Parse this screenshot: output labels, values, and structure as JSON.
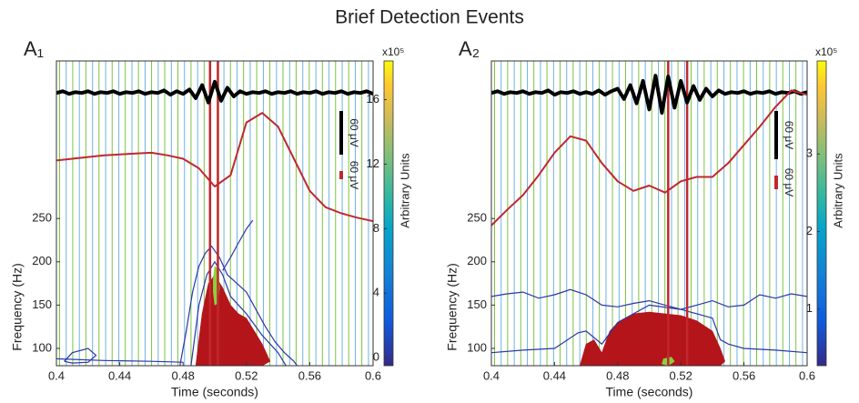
{
  "title": "Brief Detection Events",
  "chart_data": [
    {
      "type": "spectrogram",
      "panel_label": "A₁",
      "xlabel": "Time (seconds)",
      "ylabel": "Frequency (Hz)",
      "colorbar_label": "Arbitrary Units",
      "colorbar_scale": "x10⁵",
      "xlim": [
        0.4,
        0.6
      ],
      "xticks": [
        0.4,
        0.44,
        0.48,
        0.52,
        0.56,
        0.6
      ],
      "ylim": [
        80,
        432
      ],
      "yticks": [
        100,
        150,
        200,
        250
      ],
      "clim": [
        -0.5,
        18.4
      ],
      "cticks": [
        0,
        4,
        8,
        12,
        16
      ],
      "scale_bars": [
        {
          "label": "60 μV",
          "color": "#000000"
        },
        {
          "label": "60 μV",
          "color": "#c0282d"
        }
      ],
      "phase_lines": [
        {
          "color": "#7dc242",
          "x": [
            0.402,
            0.4103,
            0.4186,
            0.4269,
            0.4352,
            0.4435,
            0.4518,
            0.4601,
            0.4684,
            0.4767,
            0.485,
            0.4933,
            0.5016,
            0.5099,
            0.5182,
            0.5265,
            0.5348,
            0.5431,
            0.5514,
            0.5597,
            0.568,
            0.5763,
            0.5846,
            0.5929
          ]
        },
        {
          "color": "#6fb3e0",
          "x": [
            0.4062,
            0.4145,
            0.4228,
            0.4311,
            0.4394,
            0.4477,
            0.456,
            0.4643,
            0.4726,
            0.4809,
            0.4892,
            0.4975,
            0.5058,
            0.5141,
            0.5224,
            0.5307,
            0.539,
            0.5473,
            0.5556,
            0.5639,
            0.5722,
            0.5805,
            0.5888,
            0.5971
          ]
        }
      ],
      "event_lines": {
        "color": "#c0282d",
        "x": [
          0.497,
          0.502
        ]
      },
      "contours": [
        {
          "color": "#b3151b",
          "filled": true,
          "x": [
            0.488,
            0.492,
            0.496,
            0.5,
            0.505,
            0.51,
            0.515,
            0.52,
            0.525,
            0.53,
            0.535,
            0.53,
            0.52,
            0.5,
            0.488
          ],
          "y": [
            80,
            140,
            175,
            185,
            170,
            150,
            140,
            135,
            120,
            105,
            85,
            80,
            80,
            80,
            80
          ]
        },
        {
          "color": "#2b35a8",
          "filled": false,
          "x": [
            0.478,
            0.482,
            0.486,
            0.49,
            0.494,
            0.498,
            0.503,
            0.508,
            0.514,
            0.52,
            0.526,
            0.532,
            0.538,
            0.544,
            0.55,
            0.552
          ],
          "y": [
            80,
            120,
            165,
            195,
            210,
            218,
            205,
            185,
            175,
            165,
            145,
            125,
            108,
            95,
            85,
            80
          ]
        },
        {
          "color": "#2b35a8",
          "filled": false,
          "x": [
            0.485,
            0.49,
            0.495,
            0.5,
            0.505,
            0.51,
            0.52,
            0.53,
            0.54,
            0.545
          ],
          "y": [
            80,
            150,
            185,
            200,
            185,
            160,
            140,
            115,
            95,
            80
          ]
        },
        {
          "color": "#2b35a8",
          "filled": false,
          "x": [
            0.505,
            0.51,
            0.515,
            0.52,
            0.524
          ],
          "y": [
            190,
            205,
            222,
            238,
            248
          ]
        },
        {
          "color": "#2b35a8",
          "filled": false,
          "x": [
            0.405,
            0.41,
            0.42,
            0.425,
            0.42,
            0.41,
            0.405
          ],
          "y": [
            85,
            95,
            100,
            92,
            84,
            83,
            85
          ]
        },
        {
          "color": "#2b35a8",
          "filled": false,
          "x": [
            0.4,
            0.43,
            0.46,
            0.48
          ],
          "y": [
            88,
            86,
            85,
            84
          ]
        },
        {
          "color": "#8ccf3e",
          "filled": true,
          "x": [
            0.499,
            0.5,
            0.502,
            0.503,
            0.502,
            0.5,
            0.499
          ],
          "y": [
            165,
            150,
            152,
            170,
            192,
            195,
            180
          ]
        }
      ],
      "series": [
        {
          "color": "#000000",
          "x": [
            0.4,
            0.404,
            0.408,
            0.412,
            0.416,
            0.42,
            0.424,
            0.428,
            0.432,
            0.436,
            0.44,
            0.444,
            0.448,
            0.452,
            0.456,
            0.46,
            0.464,
            0.468,
            0.472,
            0.476,
            0.48,
            0.484,
            0.488,
            0.492,
            0.496,
            0.5,
            0.504,
            0.508,
            0.512,
            0.516,
            0.52,
            0.524,
            0.528,
            0.532,
            0.536,
            0.54,
            0.544,
            0.548,
            0.552,
            0.556,
            0.56,
            0.564,
            0.568,
            0.572,
            0.576,
            0.58,
            0.584,
            0.588,
            0.592,
            0.596,
            0.6
          ],
          "values": [
            395,
            397,
            394,
            396,
            395,
            397,
            394,
            396,
            395,
            397,
            394,
            396,
            395,
            397,
            394,
            396,
            395,
            398,
            393,
            397,
            394,
            399,
            389,
            404,
            384,
            408,
            386,
            401,
            391,
            397,
            394,
            396,
            395,
            397,
            394,
            396,
            395,
            397,
            394,
            396,
            395,
            397,
            394,
            396,
            395,
            397,
            394,
            396,
            395,
            397,
            394
          ]
        },
        {
          "color": "#c0282d",
          "x": [
            0.4,
            0.41,
            0.42,
            0.43,
            0.44,
            0.45,
            0.46,
            0.47,
            0.48,
            0.49,
            0.5,
            0.51,
            0.52,
            0.53,
            0.54,
            0.55,
            0.56,
            0.57,
            0.58,
            0.59,
            0.6
          ],
          "values": [
            317,
            319,
            321,
            323,
            324,
            325,
            326,
            323,
            319,
            308,
            287,
            300,
            361,
            372,
            356,
            319,
            282,
            263,
            256,
            251,
            247
          ]
        }
      ]
    },
    {
      "type": "spectrogram",
      "panel_label": "A₂",
      "xlabel": "Time (seconds)",
      "ylabel": "Frequency (Hz)",
      "colorbar_label": "Arbitrary Units",
      "colorbar_scale": "x10⁵",
      "xlim": [
        0.4,
        0.6
      ],
      "xticks": [
        0.4,
        0.44,
        0.48,
        0.52,
        0.56,
        0.6
      ],
      "ylim": [
        80,
        432
      ],
      "yticks": [
        100,
        150,
        200,
        250
      ],
      "clim": [
        0.27,
        4.2
      ],
      "cticks": [
        1,
        2,
        3
      ],
      "scale_bars": [
        {
          "label": "60 μV",
          "color": "#000000"
        },
        {
          "label": "60 μV",
          "color": "#c0282d"
        }
      ],
      "phase_lines": [
        {
          "color": "#7dc242",
          "x": [
            0.402,
            0.4103,
            0.4186,
            0.4269,
            0.4352,
            0.4435,
            0.4518,
            0.4601,
            0.4684,
            0.4767,
            0.485,
            0.4933,
            0.5016,
            0.5099,
            0.5182,
            0.5265,
            0.5348,
            0.5431,
            0.5514,
            0.5597,
            0.568,
            0.5763,
            0.5846,
            0.5929
          ]
        },
        {
          "color": "#6fb3e0",
          "x": [
            0.4062,
            0.4145,
            0.4228,
            0.4311,
            0.4394,
            0.4477,
            0.456,
            0.4643,
            0.4726,
            0.4809,
            0.4892,
            0.4975,
            0.5058,
            0.5141,
            0.5224,
            0.5307,
            0.539,
            0.5473,
            0.5556,
            0.5639,
            0.5722,
            0.5805,
            0.5888,
            0.5971
          ]
        }
      ],
      "event_lines": {
        "color": "#c0282d",
        "x": [
          0.512,
          0.524
        ]
      },
      "contours": [
        {
          "color": "#b3151b",
          "filled": true,
          "x": [
            0.456,
            0.46,
            0.465,
            0.47,
            0.475,
            0.48,
            0.49,
            0.5,
            0.51,
            0.52,
            0.53,
            0.54,
            0.545,
            0.548,
            0.545,
            0.456
          ],
          "y": [
            80,
            105,
            110,
            95,
            120,
            130,
            140,
            142,
            140,
            138,
            132,
            120,
            100,
            85,
            80,
            80
          ]
        },
        {
          "color": "#2b35a8",
          "filled": false,
          "x": [
            0.4,
            0.41,
            0.42,
            0.43,
            0.44,
            0.45,
            0.46,
            0.47,
            0.48,
            0.49,
            0.5,
            0.51,
            0.52,
            0.53,
            0.54,
            0.55,
            0.56,
            0.57,
            0.58,
            0.59,
            0.6
          ],
          "y": [
            160,
            163,
            165,
            158,
            162,
            168,
            162,
            150,
            148,
            152,
            155,
            150,
            145,
            150,
            155,
            148,
            150,
            162,
            158,
            163,
            160
          ]
        },
        {
          "color": "#2b35a8",
          "filled": false,
          "x": [
            0.4,
            0.42,
            0.44,
            0.455,
            0.46,
            0.47,
            0.48,
            0.5,
            0.52,
            0.54,
            0.545,
            0.55,
            0.56,
            0.58,
            0.6
          ],
          "y": [
            95,
            98,
            100,
            118,
            120,
            105,
            130,
            150,
            145,
            135,
            110,
            105,
            100,
            98,
            95
          ]
        },
        {
          "color": "#8ccf3e",
          "filled": true,
          "x": [
            0.508,
            0.512,
            0.516,
            0.514,
            0.509
          ],
          "y": [
            82,
            80,
            85,
            90,
            88
          ]
        }
      ],
      "series": [
        {
          "color": "#000000",
          "x": [
            0.4,
            0.404,
            0.408,
            0.412,
            0.416,
            0.42,
            0.424,
            0.428,
            0.432,
            0.436,
            0.44,
            0.444,
            0.448,
            0.452,
            0.456,
            0.46,
            0.464,
            0.468,
            0.472,
            0.476,
            0.48,
            0.484,
            0.488,
            0.492,
            0.496,
            0.5,
            0.504,
            0.508,
            0.512,
            0.516,
            0.52,
            0.524,
            0.528,
            0.532,
            0.536,
            0.54,
            0.544,
            0.548,
            0.552,
            0.556,
            0.56,
            0.564,
            0.568,
            0.572,
            0.576,
            0.58,
            0.584,
            0.588,
            0.592,
            0.596,
            0.6
          ],
          "values": [
            395,
            397,
            394,
            396,
            395,
            397,
            394,
            396,
            395,
            398,
            393,
            396,
            395,
            397,
            394,
            396,
            394,
            398,
            393,
            397,
            400,
            388,
            404,
            383,
            409,
            376,
            415,
            372,
            414,
            378,
            409,
            384,
            403,
            387,
            400,
            391,
            398,
            394,
            396,
            395,
            397,
            394,
            396,
            395,
            397,
            394,
            396,
            395,
            397,
            394,
            396
          ]
        },
        {
          "color": "#c0282d",
          "x": [
            0.4,
            0.41,
            0.42,
            0.43,
            0.44,
            0.45,
            0.46,
            0.47,
            0.48,
            0.49,
            0.5,
            0.51,
            0.52,
            0.53,
            0.54,
            0.55,
            0.56,
            0.57,
            0.58,
            0.59,
            0.6
          ],
          "values": [
            242,
            260,
            277,
            300,
            326,
            345,
            340,
            314,
            293,
            282,
            288,
            280,
            293,
            298,
            298,
            314,
            335,
            356,
            379,
            398,
            393
          ]
        }
      ]
    }
  ]
}
